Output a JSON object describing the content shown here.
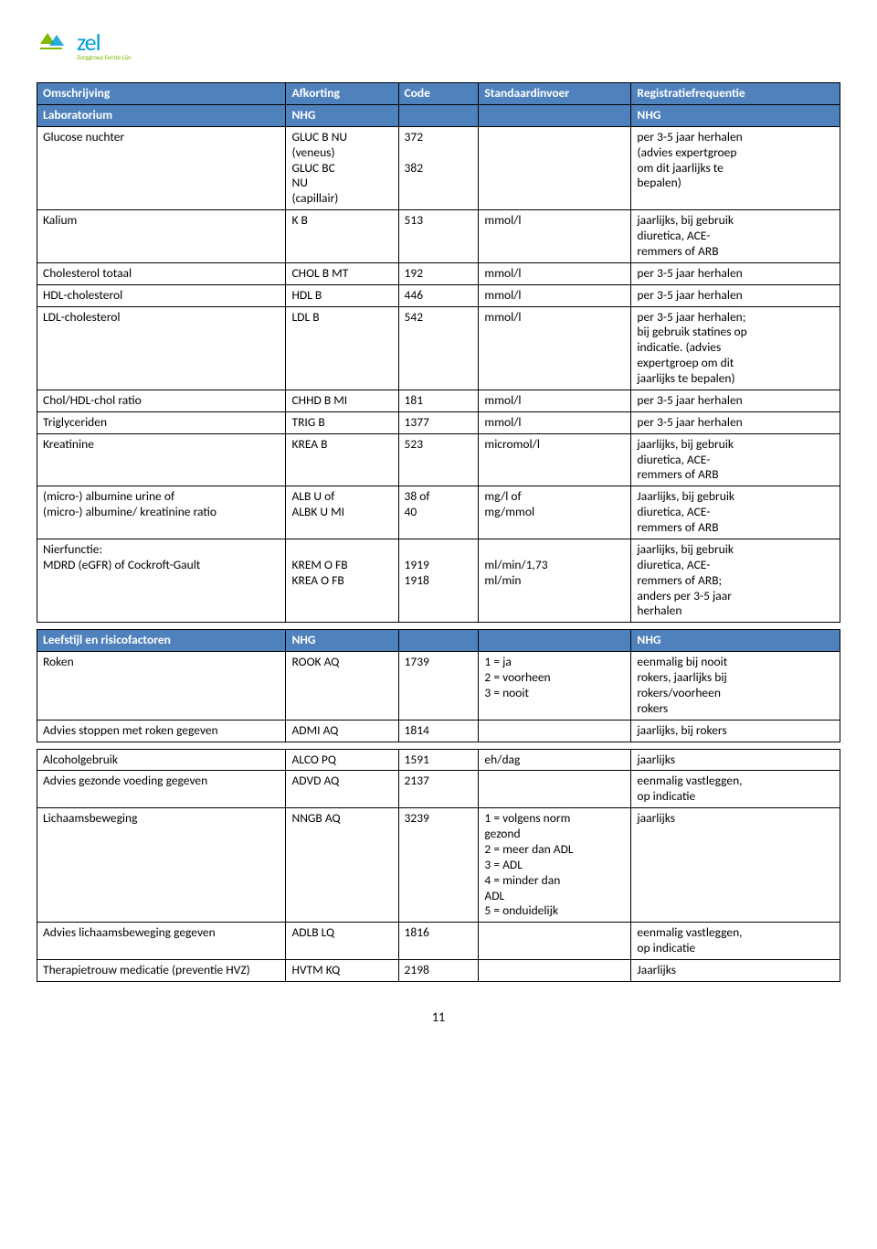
{
  "logo": {
    "text": "zel",
    "subtitle": "Zorggroep Eerste Lijn"
  },
  "page_number": "11",
  "header": {
    "c1": "Omschrijving",
    "c2": "Afkorting",
    "c3": "Code",
    "c4": "Standaardinvoer",
    "c5": "Registratiefrequentie"
  },
  "colors": {
    "header_bg": "#4f81bd",
    "header_text": "#ffffff",
    "border": "#000000",
    "logo_blue": "#009fd6",
    "logo_green": "#7fba00"
  },
  "sections": [
    {
      "title": {
        "c1": "Laboratorium",
        "c2": "NHG",
        "c5": "NHG"
      },
      "rows": [
        {
          "c1": "Glucose nuchter",
          "c2": "GLUC B NU\n(veneus)\nGLUC BC\nNU\n(capillair)",
          "c3": "372\n\n382",
          "c4": "",
          "c5": "per 3-5 jaar herhalen\n(advies expertgroep\nom dit jaarlijks te\nbepalen)"
        },
        {
          "c1": "Kalium",
          "c2": "K B",
          "c3": "513",
          "c4": "mmol/l",
          "c5": "jaarlijks, bij gebruik\ndiuretica, ACE-\nremmers of ARB"
        },
        {
          "c1": "Cholesterol totaal",
          "c2": "CHOL B MT",
          "c3": "192",
          "c4": "mmol/l",
          "c5": "per 3-5 jaar herhalen"
        },
        {
          "c1": "HDL-cholesterol",
          "c2": "HDL B",
          "c3": "446",
          "c4": "mmol/l",
          "c5": "per 3-5 jaar herhalen"
        },
        {
          "c1": "LDL-cholesterol",
          "c2": "LDL B",
          "c3": "542",
          "c4": "mmol/l",
          "c5": "per 3-5 jaar herhalen;\nbij gebruik statines op\nindicatie. (advies\nexpertgroep om dit\njaarlijks te bepalen)"
        },
        {
          "c1": "Chol/HDL-chol ratio",
          "c2": "CHHD B MI",
          "c3": "181",
          "c4": "mmol/l",
          "c5": "per 3-5 jaar herhalen"
        },
        {
          "c1": "Triglyceriden",
          "c2": "TRIG B",
          "c3": "1377",
          "c4": "mmol/l",
          "c5": "per 3-5 jaar herhalen"
        },
        {
          "c1": "Kreatinine",
          "c2": "KREA B",
          "c3": "523",
          "c4": "micromol/l",
          "c5": "jaarlijks, bij gebruik\ndiuretica, ACE-\nremmers of ARB"
        },
        {
          "c1": "(micro-) albumine urine of\n(micro-) albumine/ kreatinine ratio",
          "c2": "ALB U of\nALBK U MI",
          "c3": "38 of\n40",
          "c4": "mg/l of\nmg/mmol",
          "c5": "Jaarlijks, bij gebruik\ndiuretica, ACE-\nremmers of ARB"
        },
        {
          "c1": "Nierfunctie:\nMDRD (eGFR) of Cockroft-Gault",
          "c2": "\nKREM O FB\nKREA O FB",
          "c3": "\n1919\n1918",
          "c4": "\nml/min/1,73\nml/min",
          "c5": "jaarlijks, bij gebruik\ndiuretica, ACE-\nremmers of ARB;\nanders per 3-5 jaar\nherhalen"
        }
      ]
    },
    {
      "title": {
        "c1": "Leefstijl en risicofactoren",
        "c2": "NHG",
        "c5": "NHG"
      },
      "rows": [
        {
          "c1": "Roken",
          "c2": "ROOK AQ",
          "c3": "1739",
          "c4": "1 = ja\n2 = voorheen\n3 = nooit",
          "c5": "eenmalig bij nooit\nrokers, jaarlijks bij\nrokers/voorheen\nrokers"
        },
        {
          "c1": "Advies stoppen met roken gegeven",
          "c2": "ADMI AQ",
          "c3": "1814",
          "c4": "",
          "c5": "jaarlijks, bij rokers"
        }
      ]
    },
    {
      "rows": [
        {
          "c1": "Alcoholgebruik",
          "c2": "ALCO PQ",
          "c3": "1591",
          "c4": "eh/dag",
          "c5": "jaarlijks"
        },
        {
          "c1": "Advies gezonde voeding gegeven",
          "c2": "ADVD AQ",
          "c3": "2137",
          "c4": "",
          "c5": "eenmalig vastleggen,\nop indicatie"
        },
        {
          "c1": "Lichaamsbeweging",
          "c2": "NNGB AQ",
          "c3": "3239",
          "c4": "1 = volgens norm\ngezond\n2 = meer dan ADL\n3 = ADL\n4 = minder dan\nADL\n5 = onduidelijk",
          "c5": "jaarlijks"
        },
        {
          "c1": "Advies lichaamsbeweging gegeven",
          "c2": "ADLB LQ",
          "c3": "1816",
          "c4": "",
          "c5": "eenmalig vastleggen,\nop indicatie"
        },
        {
          "c1": "Therapietrouw medicatie (preventie HVZ)",
          "c2": "HVTM KQ",
          "c3": "2198",
          "c4": "",
          "c5": "Jaarlijks"
        }
      ]
    }
  ]
}
